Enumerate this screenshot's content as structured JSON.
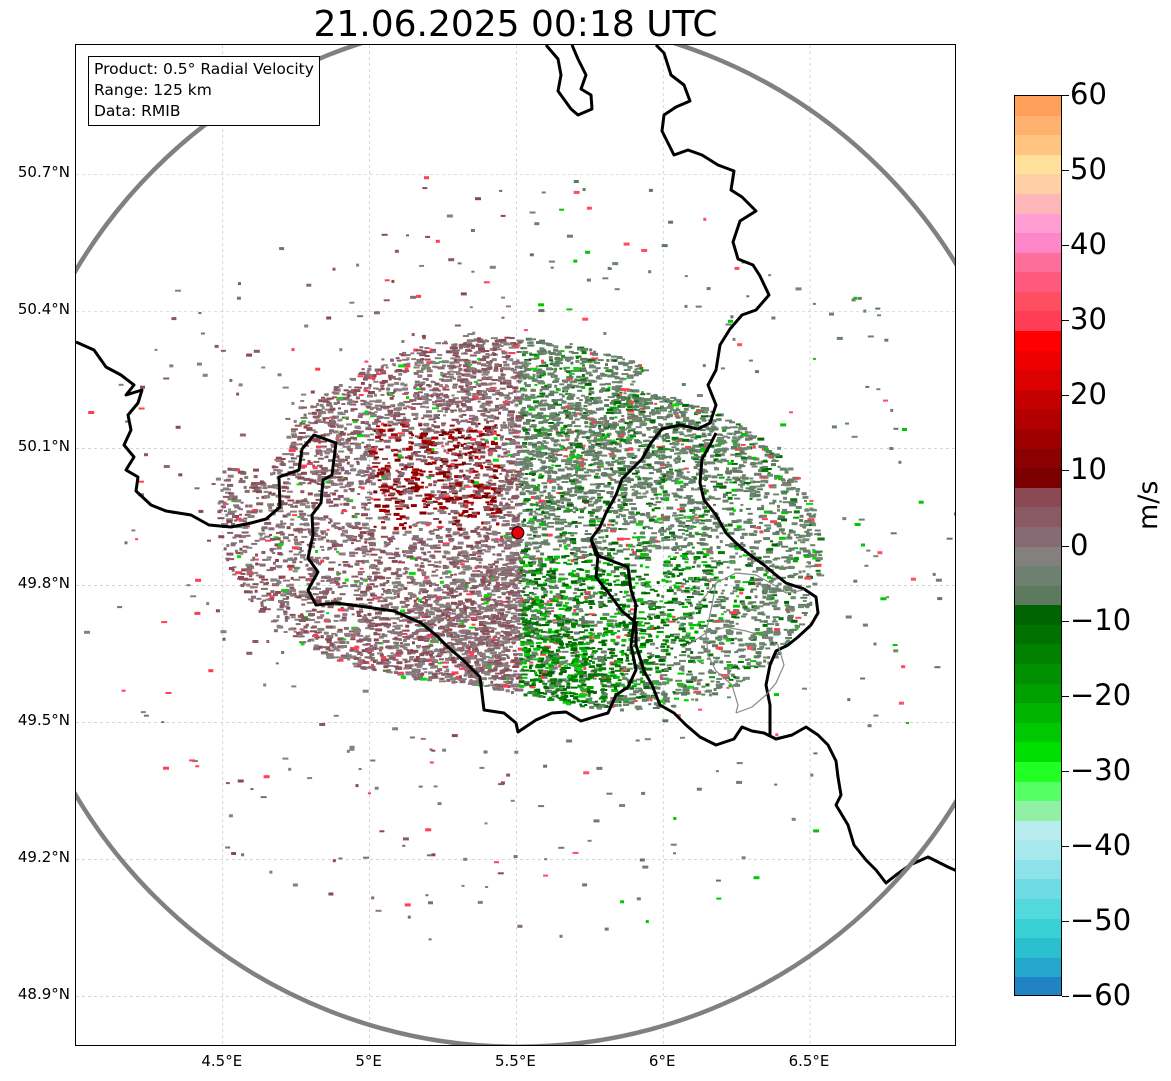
{
  "title": "21.06.2025 00:18 UTC",
  "info_box": {
    "product": "Product: 0.5° Radial Velocity",
    "range": "Range: 125 km",
    "data": "Data: RMIB"
  },
  "map": {
    "lon_range": [
      4.0,
      7.0
    ],
    "lat_range": [
      48.8,
      50.98
    ],
    "radar_site": {
      "lon": 5.505,
      "lat": 49.915,
      "color": "#e8000b"
    },
    "range_ring_km": 125,
    "lat_ticks": [
      "50.7°N",
      "50.4°N",
      "50.1°N",
      "49.8°N",
      "49.5°N",
      "49.2°N",
      "48.9°N"
    ],
    "lat_values": [
      50.7,
      50.4,
      50.1,
      49.8,
      49.5,
      49.2,
      48.9
    ],
    "lon_ticks": [
      "4.5°E",
      "5°E",
      "5.5°E",
      "6°E",
      "6.5°E"
    ],
    "lon_values": [
      4.5,
      5.0,
      5.5,
      6.0,
      6.5
    ],
    "gridlines": true
  },
  "colorbar": {
    "unit": "m/s",
    "min": -60,
    "max": 60,
    "tick_labels": [
      "60",
      "50",
      "40",
      "30",
      "20",
      "10",
      "0",
      "−10",
      "−20",
      "−30",
      "−40",
      "−50",
      "−60"
    ],
    "tick_values": [
      60,
      50,
      40,
      30,
      20,
      10,
      0,
      -10,
      -20,
      -30,
      -40,
      -50,
      -60
    ],
    "colors_top_to_bottom": [
      "#ff9f5a",
      "#ffb26f",
      "#ffc47f",
      "#ffe19c",
      "#ffd0a4",
      "#ffb6b9",
      "#ff9cd2",
      "#ff86c8",
      "#ff6d9a",
      "#ff5a7d",
      "#ff4d62",
      "#ff3d55",
      "#ff0000",
      "#ee0000",
      "#dd0000",
      "#c60000",
      "#b20000",
      "#9e0000",
      "#8b0000",
      "#7a0000",
      "#8b4a53",
      "#8a5a64",
      "#866a74",
      "#83807e",
      "#6e8070",
      "#5d7a5e",
      "#006400",
      "#007200",
      "#008200",
      "#009000",
      "#00a000",
      "#00b400",
      "#00c800",
      "#00e000",
      "#22ff22",
      "#55ff66",
      "#90f0a6",
      "#b9ecef",
      "#a6e8ec",
      "#8ce2e8",
      "#6edde3",
      "#52d8dd",
      "#38d1d6",
      "#2cbfcf",
      "#25a7cc",
      "#2182c5"
    ]
  }
}
